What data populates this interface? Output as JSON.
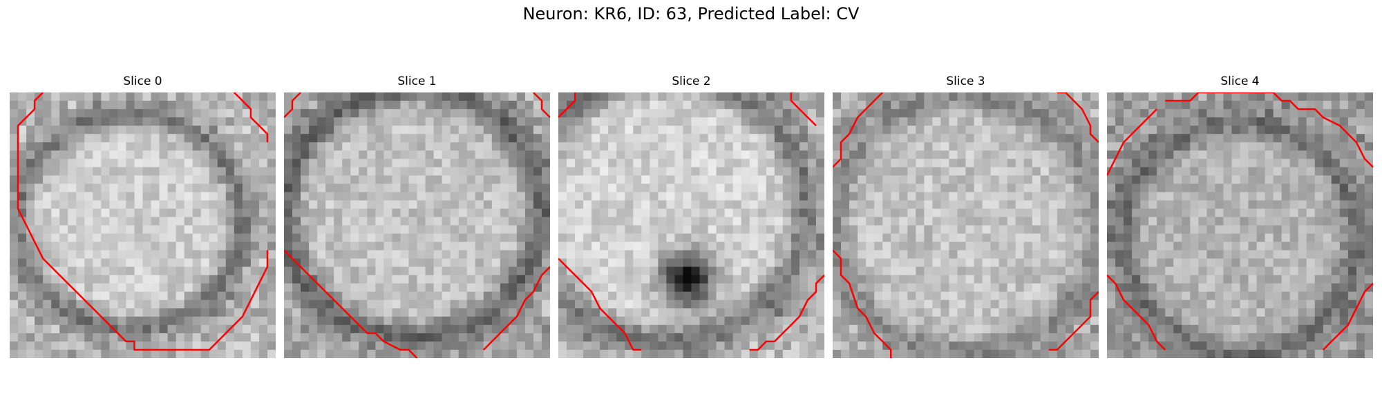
{
  "figure": {
    "title": "Neuron: KR6, ID: 63, Predicted Label: CV"
  },
  "colors": {
    "contour": "#ff0000"
  },
  "slices": [
    {
      "label": "Slice 0",
      "image": "grayscale-em-slice-0-with-red-contour"
    },
    {
      "label": "Slice 1",
      "image": "grayscale-em-slice-1-with-red-contour"
    },
    {
      "label": "Slice 2",
      "image": "grayscale-em-slice-2-with-red-contour"
    },
    {
      "label": "Slice 3",
      "image": "grayscale-em-slice-3-with-red-contour"
    },
    {
      "label": "Slice 4",
      "image": "grayscale-em-slice-4-with-red-contour"
    }
  ]
}
